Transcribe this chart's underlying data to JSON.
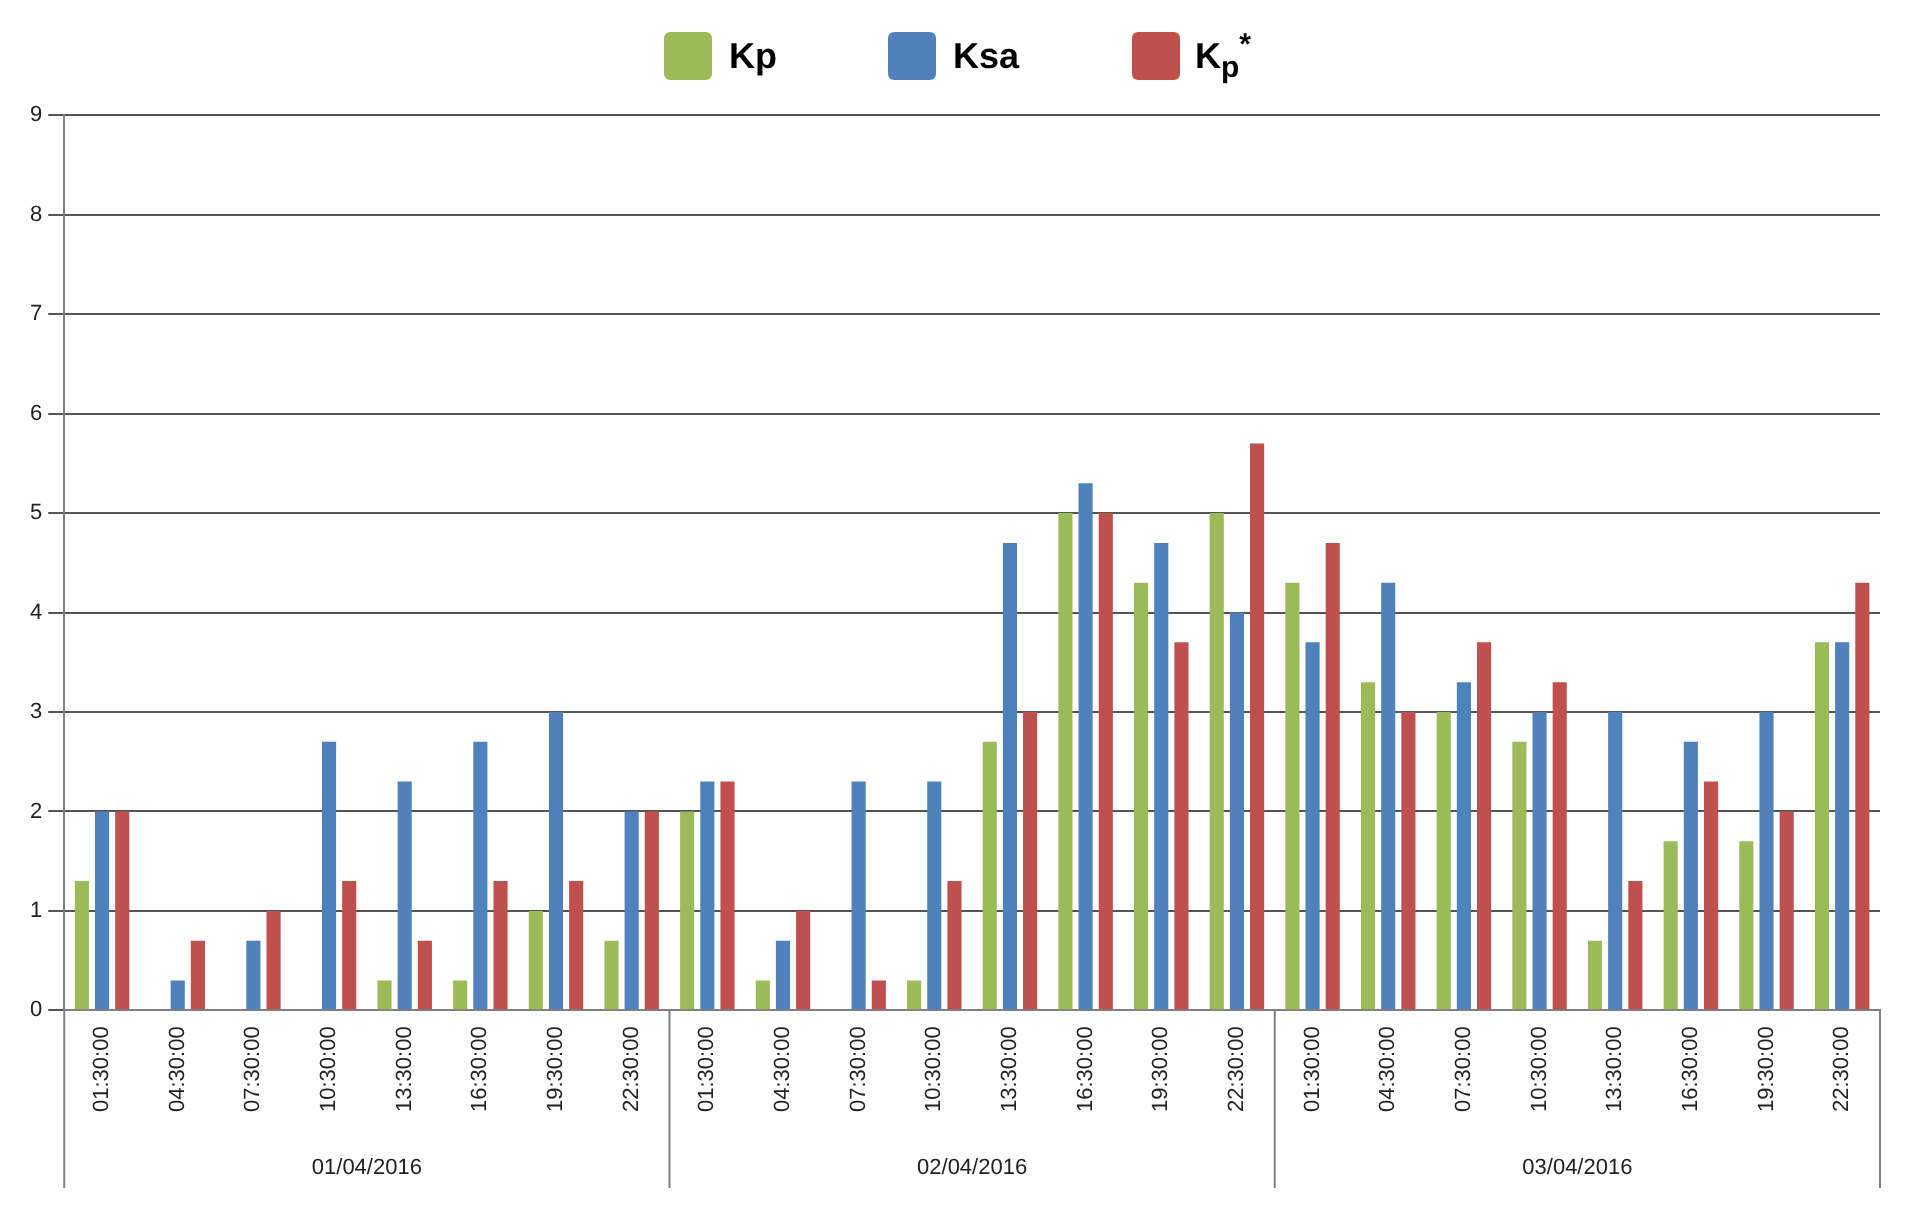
{
  "chart_data": {
    "type": "bar",
    "categories": [
      "01:30:00",
      "04:30:00",
      "07:30:00",
      "10:30:00",
      "13:30:00",
      "16:30:00",
      "19:30:00",
      "22:30:00",
      "01:30:00",
      "04:30:00",
      "07:30:00",
      "10:30:00",
      "13:30:00",
      "16:30:00",
      "19:30:00",
      "22:30:00",
      "01:30:00",
      "04:30:00",
      "07:30:00",
      "10:30:00",
      "13:30:00",
      "16:30:00",
      "19:30:00",
      "22:30:00"
    ],
    "series": [
      {
        "name": "Kp",
        "color": "#9bbb59",
        "values": [
          1.3,
          0,
          0,
          0,
          0.3,
          0.3,
          1,
          0.7,
          2,
          0.3,
          0,
          0.3,
          2.7,
          5,
          4.3,
          5,
          4.3,
          3.3,
          3,
          2.7,
          0.7,
          1.7,
          1.7,
          3.7
        ]
      },
      {
        "name": "Ksa",
        "color": "#4f81bd",
        "values": [
          2,
          0.3,
          0.7,
          2.7,
          2.3,
          2.7,
          3,
          2,
          2.3,
          0.7,
          2.3,
          2.3,
          4.7,
          5.3,
          4.7,
          4,
          3.7,
          4.3,
          3.3,
          3,
          3,
          2.7,
          3,
          3.7
        ]
      },
      {
        "name": "K$_{p}$$^{*}$",
        "color": "#c0504d",
        "values": [
          2,
          0.7,
          1,
          1.3,
          0.7,
          1.3,
          1.3,
          2,
          2.3,
          1,
          0.3,
          1.3,
          3,
          5,
          3.7,
          5.7,
          4.7,
          3,
          3.7,
          3.3,
          1.3,
          2.3,
          2,
          4.3
        ]
      }
    ],
    "annotations": [
      "01/04/2016",
      "02/04/2016",
      "03/04/2016"
    ],
    "ylim": [
      0,
      9
    ],
    "yticks": [
      0,
      1,
      2,
      3,
      4,
      5,
      6,
      7,
      8,
      9
    ],
    "grid": "y",
    "legend": "top"
  }
}
